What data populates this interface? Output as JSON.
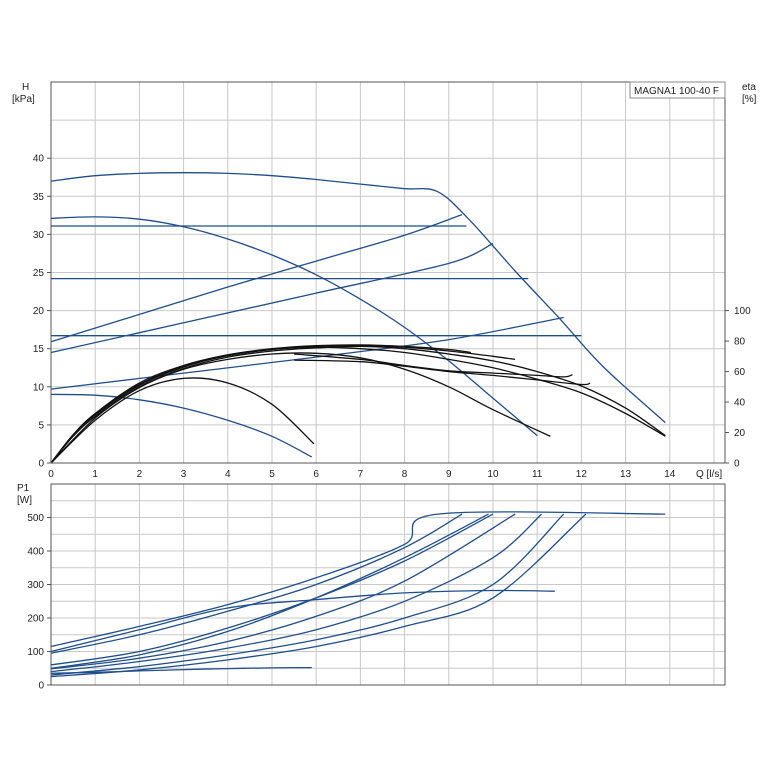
{
  "chart_data": [
    {
      "type": "line",
      "legend_text": "MAGNA1 100-40 F",
      "legend_placement": "top-right",
      "grid": true,
      "y_label_lines": [
        "H",
        "[kPa]"
      ],
      "y2_label_lines": [
        "eta",
        "[%]"
      ],
      "x_label": "Q [l/s]",
      "xlim": [
        0,
        15.25
      ],
      "ylim": [
        0,
        50
      ],
      "y2lim": [
        0,
        250
      ],
      "x_ticks": [
        "0",
        "1",
        "2",
        "3",
        "4",
        "5",
        "6",
        "7",
        "8",
        "9",
        "10",
        "11",
        "12",
        "13",
        "14"
      ],
      "y_ticks": [
        "0",
        "5",
        "10",
        "15",
        "20",
        "25",
        "30",
        "35",
        "40"
      ],
      "y2_ticks": [
        "0",
        "20",
        "40",
        "60",
        "80",
        "100"
      ],
      "series": [
        {
          "color": "#1f4e8c",
          "x": [
            0,
            1,
            2,
            3,
            4,
            5,
            6,
            7,
            8,
            8.75,
            9.5,
            10.5,
            11.5,
            12.5,
            13.9
          ],
          "y": [
            37,
            37.7,
            38,
            38.1,
            38,
            37.7,
            37.2,
            36.6,
            36,
            35.6,
            31.7,
            25.2,
            19.0,
            12.6,
            5.3
          ]
        },
        {
          "color": "#1f4e8c",
          "x": [
            0,
            2,
            4,
            6,
            8,
            9.3
          ],
          "y": [
            15.9,
            19.5,
            23.1,
            26.5,
            29.9,
            32.6
          ]
        },
        {
          "color": "#1f4e8c",
          "x": [
            0,
            3,
            6,
            9,
            10.0
          ],
          "y": [
            14.5,
            18.4,
            22.3,
            26.2,
            28.8
          ]
        },
        {
          "color": "#1f4e8c",
          "x": [
            0,
            3,
            6,
            9,
            11.6
          ],
          "y": [
            9.7,
            11.8,
            13.9,
            16.2,
            19.1
          ]
        },
        {
          "color": "#1f4e8c",
          "x": [
            0,
            9.4
          ],
          "y": [
            31.1,
            31.1
          ]
        },
        {
          "color": "#1f4e8c",
          "x": [
            0,
            10.8
          ],
          "y": [
            24.2,
            24.2
          ]
        },
        {
          "color": "#1f4e8c",
          "x": [
            0,
            12.0
          ],
          "y": [
            16.7,
            16.7
          ]
        },
        {
          "color": "#1f4e8c",
          "x": [
            0,
            1,
            2,
            3,
            4,
            5,
            6,
            7,
            8,
            9,
            10,
            11.0
          ],
          "y": [
            32.1,
            32.3,
            32.0,
            31.0,
            29.4,
            27.3,
            24.7,
            21.5,
            17.8,
            13.4,
            8.5,
            3.6
          ]
        },
        {
          "color": "#1f4e8c",
          "x": [
            0,
            1,
            2,
            3,
            4,
            5,
            5.9
          ],
          "y": [
            9.0,
            8.9,
            8.3,
            7.2,
            5.6,
            3.5,
            0.8
          ]
        },
        {
          "color": "#111111",
          "x": [
            0,
            0.5,
            1,
            2,
            3,
            4,
            5,
            6,
            7,
            8,
            9,
            10,
            11,
            12,
            13,
            13.9
          ],
          "y": [
            0,
            3.6,
            6.3,
            10.2,
            12.6,
            14.1,
            14.9,
            15.2,
            15.0,
            14.5,
            13.6,
            12.5,
            11.0,
            9.2,
            6.5,
            3.5
          ]
        },
        {
          "color": "#111111",
          "x": [
            0,
            0.5,
            1,
            2,
            3,
            4,
            5,
            6,
            7,
            8,
            9,
            10,
            11,
            12,
            13,
            13.9
          ],
          "y": [
            0,
            3.5,
            6.1,
            10.0,
            12.4,
            13.9,
            14.7,
            15.1,
            15.3,
            15.0,
            14.3,
            13.4,
            12.0,
            10.1,
            7.2,
            3.6
          ]
        },
        {
          "color": "#111111",
          "x": [
            0,
            0.5,
            1,
            2,
            3,
            4,
            5,
            6,
            7,
            8,
            9,
            10,
            10.5
          ],
          "y": [
            0,
            3.7,
            6.4,
            10.3,
            12.7,
            14.1,
            14.9,
            15.3,
            15.4,
            15.2,
            14.7,
            14.0,
            13.6
          ]
        },
        {
          "color": "#111111",
          "x": [
            0,
            0.5,
            1,
            2,
            3,
            4,
            5,
            6,
            7,
            8,
            9,
            9.5
          ],
          "y": [
            0,
            3.7,
            6.5,
            10.5,
            12.8,
            14.2,
            15.0,
            15.4,
            15.5,
            15.3,
            14.9,
            14.5
          ]
        },
        {
          "color": "#111111",
          "x": [
            0,
            1,
            2,
            3,
            4,
            5,
            6,
            7,
            8,
            9,
            10,
            11.3
          ],
          "y": [
            0,
            5.9,
            9.9,
            12.3,
            13.6,
            14.3,
            14.4,
            13.8,
            12.3,
            10.0,
            7.0,
            3.5
          ]
        },
        {
          "color": "#111111",
          "x": [
            0,
            1,
            2,
            3,
            4,
            5,
            5.95
          ],
          "y": [
            0,
            5.6,
            9.5,
            11.1,
            10.5,
            7.7,
            2.5
          ]
        },
        {
          "color": "#111111",
          "x": [
            5.5,
            7,
            8,
            9,
            10,
            11,
            11.6,
            11.8
          ],
          "y": [
            14.3,
            13.6,
            12.8,
            12.1,
            11.8,
            11.5,
            11.3,
            11.6
          ]
        },
        {
          "color": "#111111",
          "x": [
            5.5,
            7,
            8,
            9,
            10,
            11,
            12,
            12.2
          ],
          "y": [
            13.5,
            13.3,
            12.7,
            12.0,
            11.5,
            10.9,
            10.3,
            10.5
          ]
        }
      ]
    },
    {
      "type": "line",
      "grid": true,
      "y_label_lines": [
        "P1",
        "[W]"
      ],
      "xlim": [
        0,
        15.25
      ],
      "ylim": [
        0,
        600
      ],
      "y_ticks": [
        "0",
        "100",
        "200",
        "300",
        "400",
        "500"
      ],
      "series": [
        {
          "color": "#1f4e8c",
          "x": [
            0,
            2,
            4,
            6,
            8,
            8.75,
            13.9
          ],
          "y": [
            115,
            175,
            240,
            320,
            420,
            510,
            510
          ]
        },
        {
          "color": "#1f4e8c",
          "x": [
            0,
            2,
            4,
            6,
            8,
            9.3
          ],
          "y": [
            95,
            150,
            220,
            300,
            410,
            510
          ]
        },
        {
          "color": "#1f4e8c",
          "x": [
            0,
            2,
            4,
            6,
            8,
            9.9
          ],
          "y": [
            50,
            90,
            160,
            260,
            380,
            510
          ]
        },
        {
          "color": "#1f4e8c",
          "x": [
            0,
            2,
            4,
            6,
            8,
            10.0
          ],
          "y": [
            60,
            100,
            170,
            260,
            370,
            510
          ]
        },
        {
          "color": "#1f4e8c",
          "x": [
            0,
            2,
            4,
            6,
            8,
            10.5
          ],
          "y": [
            48,
            80,
            130,
            205,
            310,
            510
          ]
        },
        {
          "color": "#1f4e8c",
          "x": [
            0,
            2,
            4,
            6,
            8,
            10,
            11.1
          ],
          "y": [
            40,
            70,
            110,
            165,
            250,
            380,
            510
          ]
        },
        {
          "color": "#1f4e8c",
          "x": [
            0,
            2,
            4,
            6,
            8,
            10,
            11.6
          ],
          "y": [
            30,
            55,
            90,
            135,
            200,
            300,
            510
          ]
        },
        {
          "color": "#1f4e8c",
          "x": [
            0,
            2,
            4,
            6,
            8,
            10,
            12.1
          ],
          "y": [
            25,
            45,
            75,
            115,
            175,
            260,
            510
          ]
        },
        {
          "color": "#1f4e8c",
          "x": [
            0,
            2,
            4,
            6,
            8,
            10,
            11.4
          ],
          "y": [
            100,
            165,
            230,
            255,
            275,
            282,
            280
          ]
        },
        {
          "color": "#1f4e8c",
          "x": [
            0,
            1,
            2,
            3,
            4,
            5,
            5.9
          ],
          "y": [
            35,
            38,
            42,
            46,
            49,
            51,
            52
          ]
        }
      ]
    }
  ]
}
